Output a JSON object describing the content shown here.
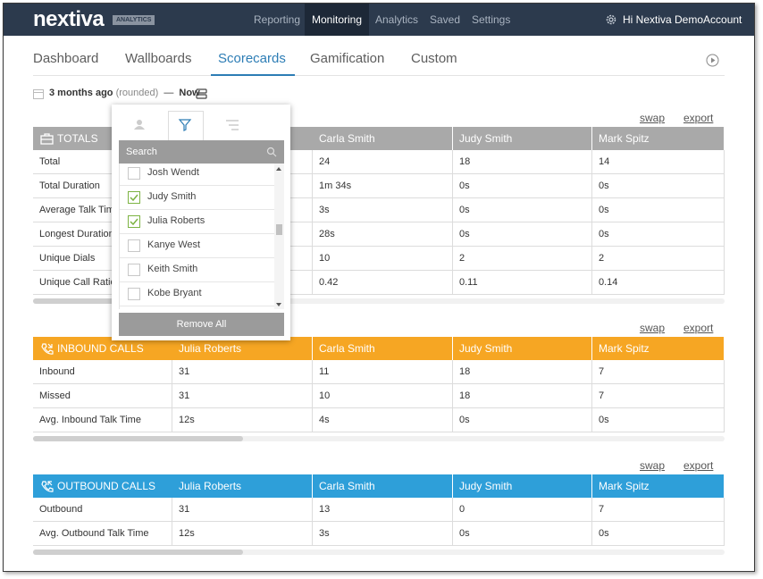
{
  "nav": {
    "logo": "nextiva",
    "badge": "ANALYTICS",
    "items": [
      "Reporting",
      "Monitoring",
      "Analytics",
      "Saved",
      "Settings"
    ],
    "active": 1,
    "account": "Hi Nextiva DemoAccount"
  },
  "tabs": {
    "items": [
      "Dashboard",
      "Wallboards",
      "Scorecards",
      "Gamification",
      "Custom"
    ],
    "active": 2
  },
  "date_range": {
    "from": "3 months ago",
    "qualifier": "(rounded)",
    "separator": "—",
    "to": "Now"
  },
  "filter": {
    "search_placeholder": "Search",
    "people": [
      {
        "name": "Josh Wendt",
        "checked": false
      },
      {
        "name": "Judy Smith",
        "checked": true
      },
      {
        "name": "Julia Roberts",
        "checked": true
      },
      {
        "name": "Kanye West",
        "checked": false
      },
      {
        "name": "Keith Smith",
        "checked": false
      },
      {
        "name": "Kobe Bryant",
        "checked": false
      }
    ],
    "button": "Remove All"
  },
  "tables": [
    {
      "title": "TOTALS",
      "color": "#a9a9a9",
      "swap": "swap",
      "export": "export",
      "columns": [
        "Carla Smith",
        "Judy Smith",
        "Mark Spitz"
      ],
      "rows": [
        {
          "label": "Total",
          "cells": [
            "24",
            "18",
            "14"
          ]
        },
        {
          "label": "Total Duration",
          "cells": [
            "1m 34s",
            "0s",
            "0s"
          ]
        },
        {
          "label": "Average Talk Time",
          "cells": [
            "3s",
            "0s",
            "0s"
          ]
        },
        {
          "label": "Longest Duration",
          "cells": [
            "28s",
            "0s",
            "0s"
          ]
        },
        {
          "label": "Unique Dials",
          "cells": [
            "10",
            "2",
            "2"
          ]
        },
        {
          "label": "Unique Call Ratio",
          "cells": [
            "0.42",
            "0.11",
            "0.14"
          ]
        }
      ]
    },
    {
      "title": "INBOUND CALLS",
      "color": "#f6a623",
      "swap": "swap",
      "export": "export",
      "columns": [
        "Julia Roberts",
        "Carla Smith",
        "Judy Smith",
        "Mark Spitz"
      ],
      "rows": [
        {
          "label": "Inbound",
          "cells": [
            "31",
            "11",
            "18",
            "7"
          ]
        },
        {
          "label": "Missed",
          "cells": [
            "31",
            "10",
            "18",
            "7"
          ]
        },
        {
          "label": "Avg. Inbound Talk Time",
          "cells": [
            "12s",
            "4s",
            "0s",
            "0s"
          ]
        }
      ]
    },
    {
      "title": "OUTBOUND CALLS",
      "color": "#2e9fd9",
      "swap": "swap",
      "export": "export",
      "columns": [
        "Julia Roberts",
        "Carla Smith",
        "Judy Smith",
        "Mark Spitz"
      ],
      "rows": [
        {
          "label": "Outbound",
          "cells": [
            "31",
            "13",
            "0",
            "7"
          ]
        },
        {
          "label": "Avg. Outbound Talk Time",
          "cells": [
            "12s",
            "3s",
            "0s",
            "0s"
          ]
        }
      ]
    }
  ]
}
